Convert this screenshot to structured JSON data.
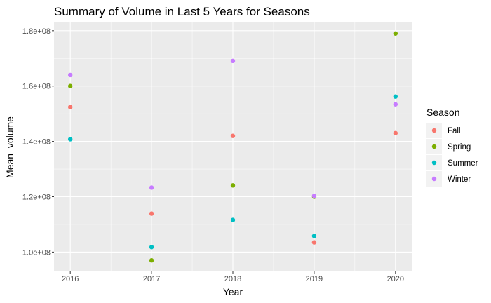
{
  "chart_data": {
    "type": "scatter",
    "title": "Summary of Volume in Last 5 Years for Seasons",
    "xlabel": "Year",
    "ylabel": "Mean_volume",
    "x_ticks": [
      "2016",
      "2017",
      "2018",
      "2019",
      "2020"
    ],
    "y_ticks": [
      {
        "value": 100000000,
        "label": "1.0e+08"
      },
      {
        "value": 120000000,
        "label": "1.2e+08"
      },
      {
        "value": 140000000,
        "label": "1.4e+08"
      },
      {
        "value": 160000000,
        "label": "1.6e+08"
      },
      {
        "value": 180000000,
        "label": "1.8e+08"
      }
    ],
    "xlim": [
      2015.8,
      2020.2
    ],
    "ylim": [
      93000000,
      183000000
    ],
    "grid": true,
    "legend": {
      "title": "Season",
      "placement": "right"
    },
    "x": [
      2016,
      2017,
      2018,
      2019,
      2020
    ],
    "series": [
      {
        "name": "Fall",
        "color": "#F8766D",
        "values": [
          152400000,
          113900000,
          142000000,
          103500000,
          143000000
        ]
      },
      {
        "name": "Spring",
        "color": "#7CAE00",
        "values": [
          160000000,
          97000000,
          124100000,
          120000000,
          179000000
        ]
      },
      {
        "name": "Summer",
        "color": "#00BFC4",
        "values": [
          140800000,
          101800000,
          111600000,
          105800000,
          156200000
        ]
      },
      {
        "name": "Winter",
        "color": "#C77CFF",
        "values": [
          164000000,
          123300000,
          169100000,
          120300000,
          153400000
        ]
      }
    ]
  }
}
